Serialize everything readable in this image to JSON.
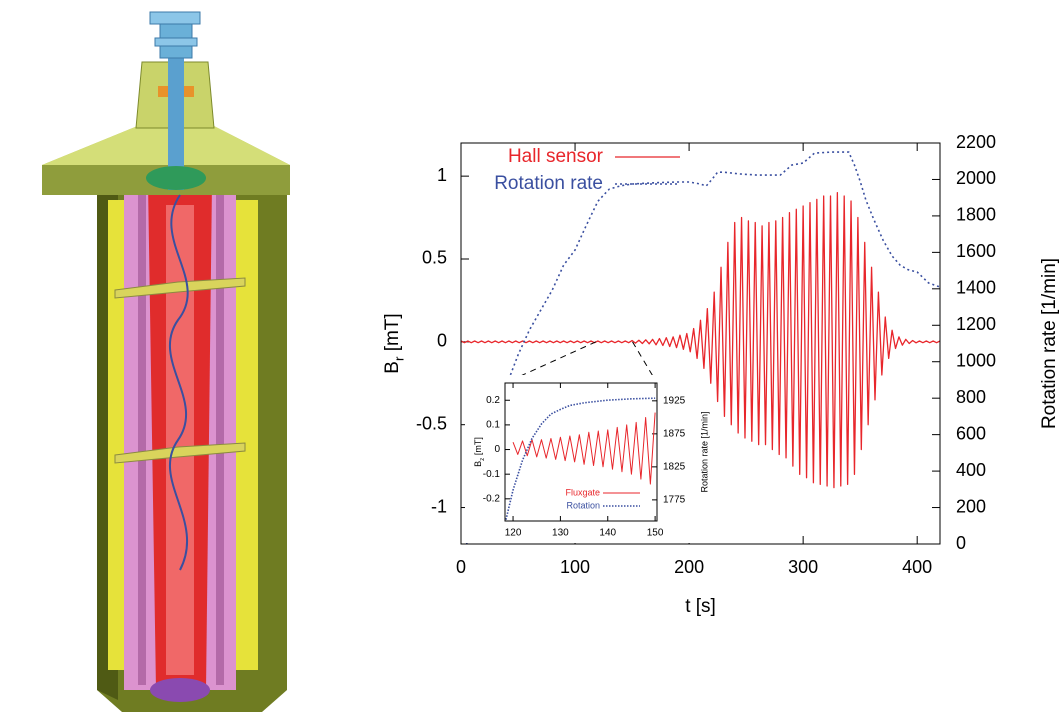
{
  "chart_data": [
    {
      "type": "line",
      "xlabel": "t [s]",
      "ylabel": [
        "B",
        "r",
        " [mT]"
      ],
      "y2label": "Rotation rate [1/min]",
      "xlim": [
        0,
        420
      ],
      "xticks": [
        0,
        100,
        200,
        300,
        400
      ],
      "ylim": [
        -1.22,
        1.2
      ],
      "yticks": [
        -1,
        -0.5,
        0,
        0.5,
        1
      ],
      "y2lim": [
        0,
        2200
      ],
      "y2ticks": [
        0,
        200,
        400,
        600,
        800,
        1000,
        1200,
        1400,
        1600,
        1800,
        2000,
        2200
      ],
      "legend": "upper left",
      "grid": false,
      "series": [
        {
          "name": "Hall sensor",
          "color": "#e8262b",
          "linestyle": "solid",
          "axis": "y",
          "x": [
            0,
            3,
            6,
            9,
            12,
            15,
            18,
            21,
            24,
            27,
            30,
            33,
            36,
            39,
            42,
            45,
            48,
            51,
            54,
            57,
            60,
            63,
            66,
            69,
            72,
            75,
            78,
            81,
            84,
            87,
            90,
            93,
            96,
            99,
            102,
            105,
            108,
            111,
            114,
            117,
            120,
            123,
            126,
            129,
            132,
            135,
            138,
            141,
            144,
            147,
            150,
            153,
            156,
            159,
            162,
            165,
            168,
            171,
            174,
            177,
            180,
            183,
            186,
            189,
            192,
            195,
            198,
            201,
            204,
            207,
            210,
            213,
            216,
            219,
            222,
            225,
            228,
            231,
            234,
            237,
            240,
            243,
            246,
            249,
            252,
            255,
            258,
            261,
            264,
            267,
            270,
            273,
            276,
            279,
            282,
            285,
            288,
            291,
            294,
            297,
            300,
            303,
            306,
            309,
            312,
            315,
            318,
            321,
            324,
            327,
            330,
            333,
            336,
            339,
            342,
            345,
            348,
            351,
            354,
            357,
            360,
            363,
            366,
            369,
            372,
            375,
            378,
            381,
            384,
            387,
            390,
            393,
            396,
            399,
            402,
            405,
            408,
            411,
            414,
            417,
            420
          ],
          "values": [
            0.005,
            -0.005,
            0.005,
            -0.005,
            0.005,
            -0.005,
            0.005,
            -0.005,
            0.005,
            -0.005,
            0.005,
            -0.005,
            0.005,
            -0.005,
            0.005,
            -0.005,
            0.005,
            -0.005,
            0.005,
            -0.005,
            0.005,
            -0.005,
            0.005,
            -0.005,
            0.005,
            -0.005,
            0.005,
            -0.005,
            0.005,
            -0.005,
            0.005,
            -0.005,
            0.005,
            -0.005,
            0.005,
            -0.005,
            0.005,
            -0.005,
            0.005,
            -0.005,
            0.005,
            -0.005,
            0.005,
            -0.005,
            0.005,
            -0.005,
            0.005,
            -0.005,
            0.005,
            -0.005,
            0.008,
            -0.008,
            0.01,
            -0.01,
            0.012,
            -0.012,
            0.015,
            -0.018,
            0.02,
            -0.022,
            0.025,
            -0.028,
            0.03,
            -0.035,
            0.04,
            -0.045,
            0.05,
            -0.06,
            0.08,
            -0.1,
            0.13,
            -0.16,
            0.2,
            -0.25,
            0.3,
            -0.36,
            0.45,
            -0.45,
            0.6,
            -0.5,
            0.72,
            -0.55,
            0.75,
            -0.58,
            0.73,
            -0.6,
            0.72,
            -0.62,
            0.7,
            -0.62,
            0.72,
            -0.65,
            0.73,
            -0.68,
            0.75,
            -0.7,
            0.78,
            -0.75,
            0.8,
            -0.8,
            0.82,
            -0.82,
            0.84,
            -0.85,
            0.86,
            -0.86,
            0.88,
            -0.87,
            0.88,
            -0.88,
            0.9,
            -0.87,
            0.88,
            -0.86,
            0.85,
            -0.8,
            0.75,
            -0.65,
            0.6,
            -0.5,
            0.45,
            -0.35,
            0.3,
            -0.2,
            0.15,
            -0.1,
            0.07,
            -0.04,
            0.03,
            -0.02,
            0.015,
            -0.01,
            0.008,
            -0.006,
            0.005,
            -0.005,
            0.005,
            -0.005,
            0.005,
            -0.005,
            0.005
          ]
        },
        {
          "name": "Rotation rate",
          "color": "#3a4fa0",
          "linestyle": "dotted",
          "axis": "y2",
          "x": [
            5,
            10,
            20,
            30,
            40,
            50,
            60,
            70,
            80,
            90,
            100,
            110,
            120,
            125,
            130,
            140,
            150,
            170,
            190,
            200,
            210,
            215,
            220,
            225,
            230,
            245,
            260,
            280,
            290,
            300,
            310,
            325,
            340,
            345,
            350,
            355,
            362,
            370,
            378,
            385,
            392,
            400,
            410,
            420
          ],
          "values": [
            0,
            187,
            406,
            680,
            872,
            1037,
            1174,
            1284,
            1393,
            1530,
            1613,
            1750,
            1880,
            1914,
            1947,
            1965,
            1975,
            1982,
            1986,
            1986,
            1975,
            1964,
            2000,
            2040,
            2040,
            2030,
            2024,
            2024,
            2079,
            2090,
            2145,
            2150,
            2150,
            2079,
            1990,
            1887,
            1780,
            1668,
            1580,
            1530,
            1505,
            1492,
            1432,
            1410
          ]
        }
      ]
    },
    {
      "type": "line",
      "ylabel": [
        "B",
        "z",
        " [mT]"
      ],
      "y2label": "Rotation rate [1/min]",
      "xlim": [
        118.3,
        150.4
      ],
      "xticks": [
        120,
        130,
        140,
        150
      ],
      "ylim": [
        -0.29,
        0.27
      ],
      "yticks": [
        -0.2,
        -0.1,
        0,
        0.1,
        0.2
      ],
      "y2lim": [
        1743,
        1952
      ],
      "y2ticks": [
        1775,
        1825,
        1875,
        1925
      ],
      "legend": "lower right",
      "grid": false,
      "series": [
        {
          "name": "Fluxgate",
          "color": "#e8262b",
          "linestyle": "solid",
          "axis": "y",
          "x": [
            120,
            121,
            122,
            123,
            124,
            125,
            126,
            127,
            128,
            129,
            130,
            131,
            132,
            133,
            134,
            135,
            136,
            137,
            138,
            139,
            140,
            141,
            142,
            143,
            144,
            145,
            146,
            147,
            148,
            149,
            150
          ],
          "values": [
            0.03,
            -0.02,
            0.035,
            -0.025,
            0.04,
            -0.03,
            0.04,
            -0.035,
            0.045,
            -0.04,
            0.05,
            -0.045,
            0.055,
            -0.05,
            0.06,
            -0.06,
            0.07,
            -0.065,
            0.075,
            -0.07,
            0.08,
            -0.08,
            0.09,
            -0.09,
            0.1,
            -0.1,
            0.11,
            -0.12,
            0.13,
            -0.14,
            0.15
          ]
        },
        {
          "name": "Rotation",
          "color": "#3a4fa0",
          "linestyle": "dotted",
          "axis": "y2",
          "x": [
            118.5,
            120,
            122,
            124,
            126,
            128,
            130,
            132,
            135,
            140,
            145,
            150
          ],
          "values": [
            1745,
            1790,
            1835,
            1868,
            1890,
            1905,
            1912,
            1918,
            1922,
            1926,
            1928,
            1929
          ]
        }
      ]
    }
  ]
}
